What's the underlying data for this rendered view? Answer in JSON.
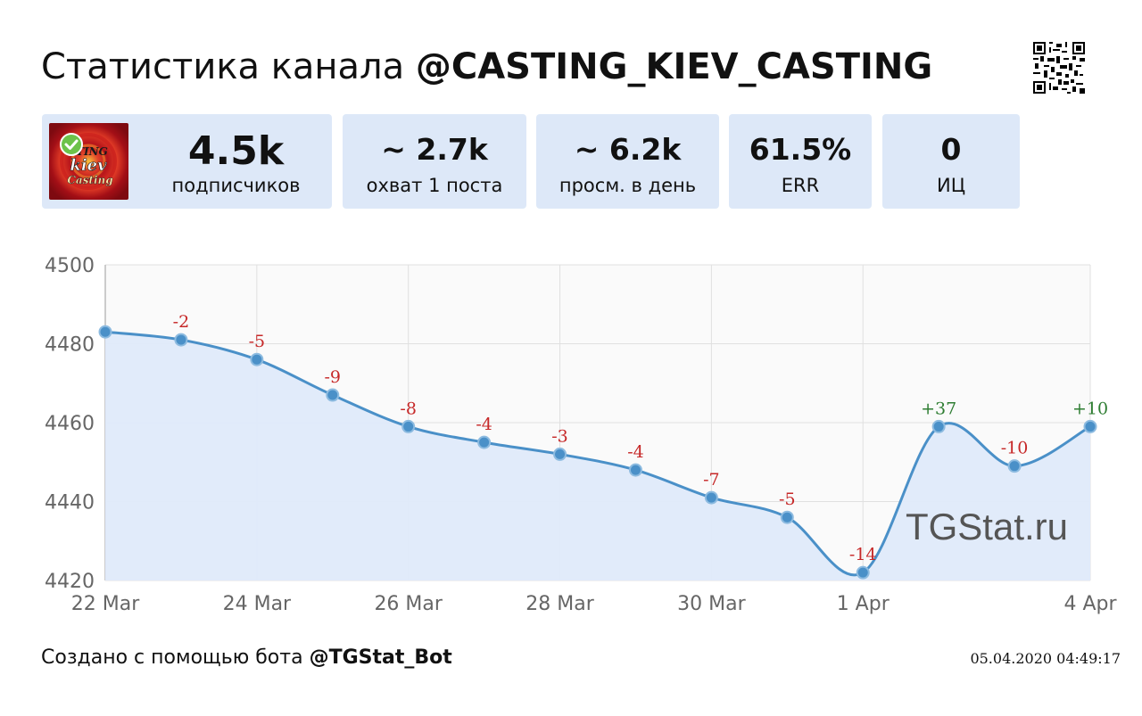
{
  "header": {
    "title_prefix": "Статистика канала",
    "channel": "@CASTING_KIEV_CASTING"
  },
  "icons": {
    "qr": "qr-code-icon",
    "verified": "verified-check-icon"
  },
  "avatar_text": {
    "line1": "TING",
    "line2": "kiev",
    "line3": "Casting"
  },
  "cards": {
    "subscribers": {
      "value": "4.5k",
      "label": "подписчиков"
    },
    "reach": {
      "value": "~ 2.7k",
      "label": "охват 1 поста"
    },
    "views": {
      "value": "~ 6.2k",
      "label": "просм. в день"
    },
    "err": {
      "value": "61.5%",
      "label": "ERR"
    },
    "ic": {
      "value": "0",
      "label": "ИЦ"
    }
  },
  "chart_data": {
    "type": "area",
    "x": [
      "22 Mar",
      "23 Mar",
      "24 Mar",
      "25 Mar",
      "26 Mar",
      "27 Mar",
      "28 Mar",
      "29 Mar",
      "30 Mar",
      "31 Mar",
      "1 Apr",
      "2 Apr",
      "3 Apr",
      "4 Apr"
    ],
    "values": [
      4483,
      4481,
      4476,
      4467,
      4459,
      4455,
      4452,
      4448,
      4441,
      4436,
      4422,
      4459,
      4449,
      4459
    ],
    "point_labels": [
      "",
      "-2",
      "-5",
      "-9",
      "-8",
      "-4",
      "-3",
      "-4",
      "-7",
      "-5",
      "-14",
      "+37",
      "-10",
      "+10"
    ],
    "x_tick_labels": [
      "22 Mar",
      "",
      "24 Mar",
      "",
      "26 Mar",
      "",
      "28 Mar",
      "",
      "30 Mar",
      "",
      "1 Apr",
      "",
      "",
      "4 Apr"
    ],
    "y_ticks": [
      4420,
      4440,
      4460,
      4480,
      4500
    ],
    "ylim": [
      4420,
      4500
    ],
    "grid": true,
    "watermark": "TGStat.ru",
    "colors": {
      "line": "#4a90c8",
      "fill": "#dfeafa",
      "negative": "#c62828",
      "positive": "#2e7d32",
      "grid": "#e0e0e0"
    }
  },
  "footer": {
    "text": "Создано с помощью бота",
    "bot": "@TGStat_Bot",
    "timestamp": "05.04.2020 04:49:17"
  }
}
